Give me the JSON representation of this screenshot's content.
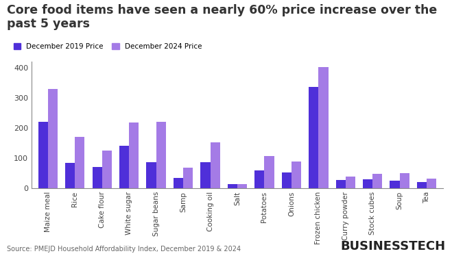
{
  "chart_data": {
    "type": "bar",
    "title": "Core food items have seen a nearly 60% price increase over the past 5 years",
    "categories": [
      "Maize meal",
      "Rice",
      "Cake flour",
      "White sugar",
      "Sugar beans",
      "Samp",
      "Cooking oil",
      "Salt",
      "Potatoes",
      "Onions",
      "Frozen chicken",
      "Curry powder",
      "Stock cubes",
      "Soup",
      "Tea"
    ],
    "series": [
      {
        "name": "December 2019 Price",
        "color": "#4f2fd9",
        "values": [
          222,
          84,
          72,
          142,
          87,
          35,
          88,
          15,
          60,
          53,
          336,
          27,
          30,
          25,
          20
        ]
      },
      {
        "name": "December 2024 Price",
        "color": "#a47be6",
        "values": [
          331,
          170,
          125,
          218,
          222,
          68,
          153,
          15,
          107,
          90,
          402,
          40,
          48,
          50,
          32
        ]
      }
    ],
    "ylim": [
      0,
      420
    ],
    "yticks": [
      0,
      100,
      200,
      300,
      400
    ],
    "grid": false,
    "legend": "upper left",
    "annotations": [
      "Source: PMEJD Household Affordability Index, December 2019 & 2024",
      "BUSINESSTECH"
    ]
  }
}
